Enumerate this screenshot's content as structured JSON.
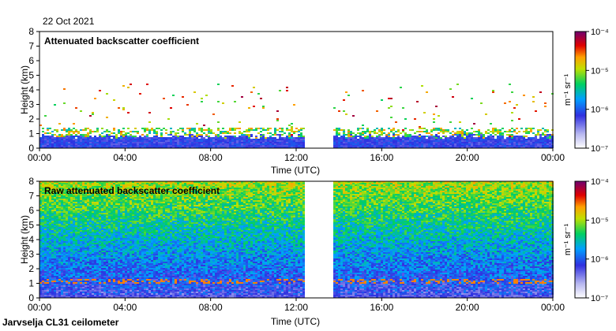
{
  "date": "22 Oct 2021",
  "footer": "Jarvselja CL31 ceilometer",
  "chart_data": [
    {
      "type": "heatmap",
      "title": "Attenuated backscatter coefficient",
      "xlabel": "Time (UTC)",
      "ylabel": "Height (km)",
      "x_ticks": [
        "00:00",
        "04:00",
        "08:00",
        "12:00",
        "16:00",
        "20:00",
        "00:00"
      ],
      "xlim_hours": [
        0,
        24
      ],
      "y_ticks": [
        "0",
        "1",
        "2",
        "3",
        "4",
        "5",
        "6",
        "7",
        "8"
      ],
      "ylim": [
        0,
        8
      ],
      "data_gap_hours": [
        12.3,
        13.7
      ],
      "colorbar": {
        "label": "m⁻¹ sr⁻¹",
        "scale": "log",
        "ticks": [
          "10⁻⁷",
          "10⁻⁶",
          "10⁻⁵",
          "10⁻⁴"
        ],
        "range": [
          1e-07,
          0.0001
        ]
      }
    },
    {
      "type": "heatmap",
      "title": "Raw attenuated backscatter coefficient",
      "xlabel": "Time (UTC)",
      "ylabel": "Height (km)",
      "x_ticks": [
        "00:00",
        "04:00",
        "08:00",
        "12:00",
        "16:00",
        "20:00",
        "00:00"
      ],
      "xlim_hours": [
        0,
        24
      ],
      "y_ticks": [
        "0",
        "1",
        "2",
        "3",
        "4",
        "5",
        "6",
        "7",
        "8"
      ],
      "ylim": [
        0,
        8
      ],
      "data_gap_hours": [
        12.3,
        13.7
      ],
      "colorbar": {
        "label": "m⁻¹ sr⁻¹",
        "scale": "log",
        "ticks": [
          "10⁻⁷",
          "10⁻⁶",
          "10⁻⁵",
          "10⁻⁴"
        ],
        "range": [
          1e-07,
          0.0001
        ]
      }
    }
  ]
}
